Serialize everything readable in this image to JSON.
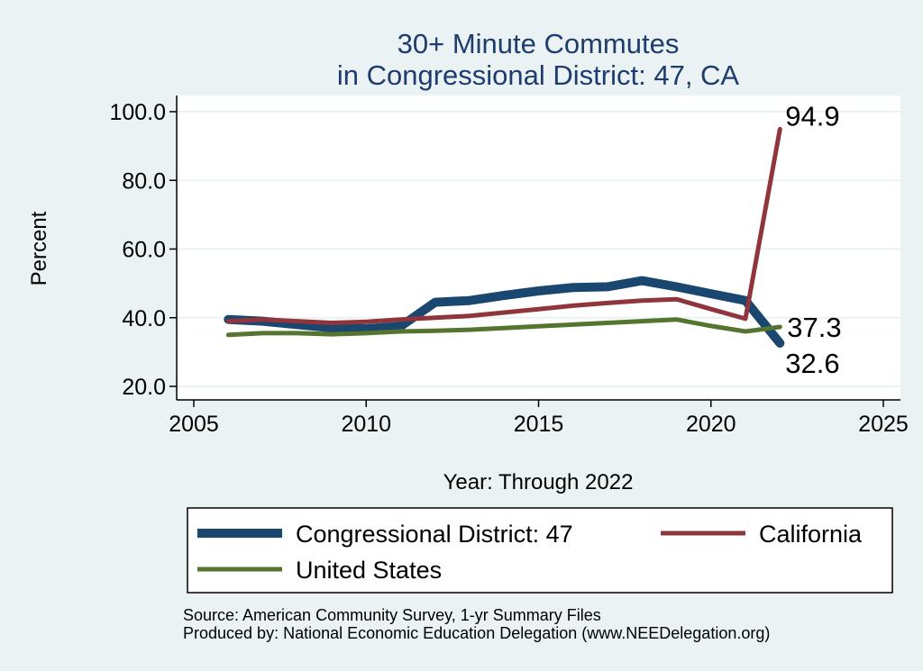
{
  "chart_data": {
    "type": "line",
    "title": [
      "30+ Minute Commutes",
      "in Congressional District:  47, CA"
    ],
    "xlabel": "Year: Through 2022",
    "ylabel": "Percent",
    "xlim": [
      2005,
      2025
    ],
    "ylim": [
      20,
      100
    ],
    "xticks": [
      2005,
      2010,
      2015,
      2020,
      2025
    ],
    "yticks": [
      20,
      40,
      60,
      80,
      100
    ],
    "ytick_labels": [
      "20.0",
      "40.0",
      "60.0",
      "80.0",
      "100.0"
    ],
    "grid": "horizontal",
    "legend_position": "bottom",
    "x": [
      2006,
      2007,
      2008,
      2009,
      2010,
      2011,
      2012,
      2013,
      2014,
      2015,
      2016,
      2017,
      2018,
      2019,
      2020,
      2021,
      2022
    ],
    "series": [
      {
        "name": "Congressional District:  47",
        "color": "#1a476f",
        "values": [
          39.5,
          39.0,
          38.0,
          37.0,
          36.8,
          37.5,
          44.5,
          45.0,
          46.5,
          47.8,
          48.8,
          49.0,
          50.8,
          49.0,
          47.0,
          45.0,
          32.6
        ],
        "end_label": "32.6"
      },
      {
        "name": "California",
        "color": "#90353b",
        "values": [
          39.0,
          39.5,
          39.0,
          38.5,
          38.8,
          39.5,
          40.0,
          40.5,
          41.5,
          42.5,
          43.5,
          44.3,
          45.0,
          45.4,
          42.5,
          39.7,
          94.9
        ],
        "end_label": "94.9"
      },
      {
        "name": "United States",
        "color": "#55752f",
        "values": [
          35.0,
          35.5,
          35.5,
          35.2,
          35.5,
          36.0,
          36.2,
          36.5,
          37.0,
          37.5,
          38.0,
          38.5,
          39.0,
          39.5,
          37.6,
          36.0,
          37.3
        ],
        "end_label": "37.3"
      }
    ]
  },
  "footer": {
    "source": "Source: American Community Survey, 1-yr Summary Files",
    "produced": "Produced by: National Economic Education Delegation (www.NEEDelegation.org)"
  }
}
